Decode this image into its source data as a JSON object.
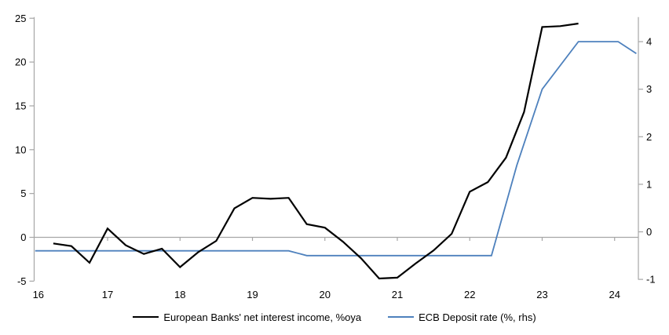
{
  "chart_data": {
    "type": "line",
    "title": "",
    "x_axis": {
      "ticks": [
        16,
        17,
        18,
        19,
        20,
        21,
        22,
        23,
        24
      ],
      "range": [
        16,
        24.33
      ],
      "tick_marks_on_zero_line": true
    },
    "left_axis": {
      "ticks": [
        25,
        20,
        15,
        10,
        5,
        0,
        -5
      ],
      "range": [
        -5,
        25
      ]
    },
    "right_axis": {
      "ticks": [
        4,
        3,
        2,
        1,
        0,
        -1
      ],
      "range": [
        -1.05,
        4.5
      ]
    },
    "grid": "zero-line-only",
    "legend_position": "bottom",
    "series": [
      {
        "name": "European Banks' net interest income, %oya",
        "axis": "left",
        "color": "#000000",
        "stroke_width": 2.2,
        "points": [
          [
            16.25,
            -0.7
          ],
          [
            16.5,
            -1.0
          ],
          [
            16.75,
            -2.9
          ],
          [
            17.0,
            1.0
          ],
          [
            17.25,
            -0.9
          ],
          [
            17.5,
            -1.9
          ],
          [
            17.75,
            -1.3
          ],
          [
            18.0,
            -3.4
          ],
          [
            18.25,
            -1.7
          ],
          [
            18.5,
            -0.4
          ],
          [
            18.75,
            3.3
          ],
          [
            19.0,
            4.5
          ],
          [
            19.25,
            4.4
          ],
          [
            19.5,
            4.5
          ],
          [
            19.75,
            1.5
          ],
          [
            20.0,
            1.1
          ],
          [
            20.25,
            -0.5
          ],
          [
            20.5,
            -2.4
          ],
          [
            20.75,
            -4.7
          ],
          [
            21.0,
            -4.6
          ],
          [
            21.25,
            -3.0
          ],
          [
            21.5,
            -1.5
          ],
          [
            21.75,
            0.4
          ],
          [
            22.0,
            5.2
          ],
          [
            22.25,
            6.3
          ],
          [
            22.5,
            9.1
          ],
          [
            22.75,
            14.3
          ],
          [
            23.0,
            24.0
          ],
          [
            23.25,
            24.1
          ],
          [
            23.5,
            24.4
          ]
        ]
      },
      {
        "name": "ECB Deposit rate (%, rhs)",
        "axis": "right",
        "color": "#4E81BD",
        "stroke_width": 1.8,
        "points": [
          [
            16.0,
            -0.4
          ],
          [
            19.5,
            -0.4
          ],
          [
            19.75,
            -0.5
          ],
          [
            22.3,
            -0.5
          ],
          [
            22.65,
            1.4
          ],
          [
            23.0,
            3.0
          ],
          [
            23.5,
            4.0
          ],
          [
            24.05,
            4.0
          ],
          [
            24.3,
            3.75
          ]
        ]
      }
    ]
  },
  "colors": {
    "axis_line": "#A6A6A6",
    "tick_text": "#000000",
    "background": "#FFFFFF"
  }
}
